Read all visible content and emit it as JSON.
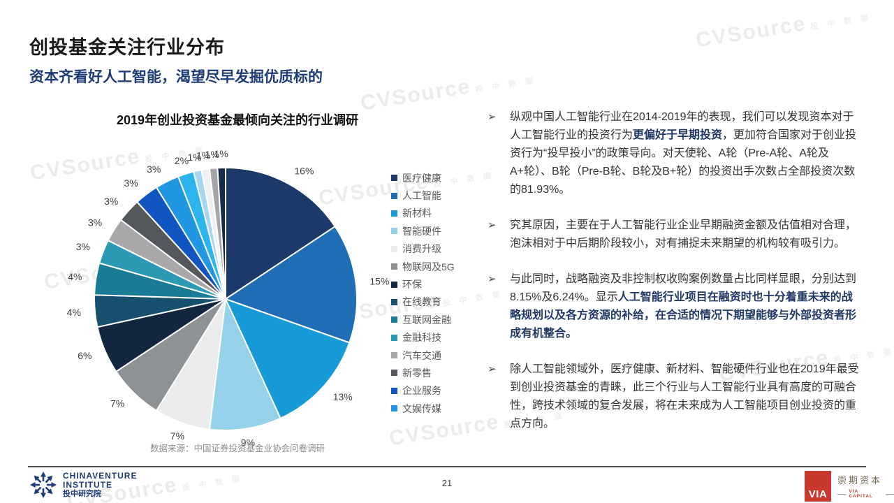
{
  "slide": {
    "title": "创投基金关注行业分布",
    "subtitle": "资本齐看好人工智能，渴望尽早发掘优质标的",
    "page_number": "21",
    "source_note": "数据来源：中国证券投资基金业协会问卷调研",
    "insight_marker": "➢"
  },
  "chart_data": {
    "type": "pie",
    "title": "2019年创业投资基金最倾向关注的行业调研",
    "legend_position": "right",
    "label_format": "percent",
    "slices": [
      {
        "label": "医疗健康",
        "value": 16,
        "color": "#1b3a69"
      },
      {
        "label": "人工智能",
        "value": 15,
        "color": "#1f6db4"
      },
      {
        "label": "新材料",
        "value": 13,
        "color": "#169bd7"
      },
      {
        "label": "智能硬件",
        "value": 9,
        "color": "#96d1ea"
      },
      {
        "label": "消费升级",
        "value": 7,
        "color": "#e9ebec"
      },
      {
        "label": "物联网及5G",
        "value": 7,
        "color": "#8f9295"
      },
      {
        "label": "环保",
        "value": 6,
        "color": "#12263f"
      },
      {
        "label": "在线教育",
        "value": 4,
        "color": "#16506e"
      },
      {
        "label": "互联网金融",
        "value": 4,
        "color": "#1a7b97"
      },
      {
        "label": "金融科技",
        "value": 3,
        "color": "#2c9ab2"
      },
      {
        "label": "汽车交通",
        "value": 3,
        "color": "#a6a8aa"
      },
      {
        "label": "新零售",
        "value": 3,
        "color": "#54575b"
      },
      {
        "label": "企业服务",
        "value": 3,
        "color": "#1155c0"
      },
      {
        "label": "文娱传媒",
        "value": 3,
        "color": "#2196e3"
      },
      {
        "label": "",
        "value": 2,
        "color": "#2cb4ee"
      },
      {
        "label": "",
        "value": 1,
        "color": "#a6d6f0"
      },
      {
        "label": "",
        "value": 1,
        "color": "#eef0f2"
      },
      {
        "label": "",
        "value": 1,
        "color": "#a3a6a9"
      },
      {
        "label": "",
        "value": 1,
        "color": "#142a4e"
      }
    ]
  },
  "insights": [
    {
      "segments": [
        {
          "text": "纵观中国人工智能行业在2014-2019年的表现，我们可以发现资本对于人工智能行业的投资行为",
          "bold": false
        },
        {
          "text": "更偏好于早期投资",
          "bold": true
        },
        {
          "text": "，更加符合国家对于创业投资行为“投早投小”的政策导向。对天使轮、A轮（Pre-A轮、A轮及A+轮）、B轮（Pre-B轮、B轮及B+轮）的投资出手次数占全部投资次数的81.93%。",
          "bold": false
        }
      ]
    },
    {
      "segments": [
        {
          "text": "究其原因，主要在于人工智能行业企业早期融资金额及估值相对合理，泡沫相对于中后期阶段较小，对有捕捉未来期望的机构较有吸引力。",
          "bold": false
        }
      ]
    },
    {
      "segments": [
        {
          "text": "与此同时，战略融资及非控制权收购案例数量占比同样显眼，分别达到8.15%及6.24%。显示",
          "bold": false
        },
        {
          "text": "人工智能行业项目在融资时也十分着重未来的战略规划以及各方资源的补给，在合适的情况下期望能够与外部投资者形成有机整合。",
          "bold": true
        }
      ]
    },
    {
      "segments": [
        {
          "text": "除人工智能领域外，医疗健康、新材料、智能硬件行业也在2019年最受到创业投资基金的青睐，此三个行业与人工智能行业具有高度的可融合性，跨技术领域的复合发展，将在未来成为人工智能项目创业投资的重点方向。",
          "bold": false
        }
      ]
    }
  ],
  "branding": {
    "watermark": "CVSource",
    "watermark_sub": "投 中 数 据",
    "left_logo": {
      "line1": "CHINAVENTURE",
      "line2": "INSTITUTE",
      "line3": "投中研究院"
    },
    "right_logo": {
      "box": "VIA",
      "name": "崇期资本",
      "caption": "VIA CAPITAL"
    }
  },
  "colors": {
    "accent_bold_text": "#1f3864",
    "subtitle": "#1e3c78",
    "brand_red": "#c8382f"
  }
}
